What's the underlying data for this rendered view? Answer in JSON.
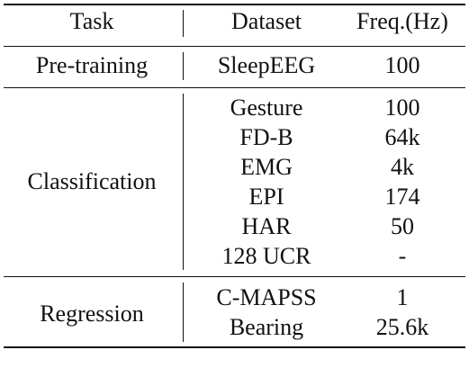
{
  "table": {
    "headers": {
      "task": "Task",
      "dataset": "Dataset",
      "freq": "Freq.(Hz)"
    },
    "groups": [
      {
        "task": "Pre-training",
        "rows": [
          {
            "dataset": "SleepEEG",
            "freq": "100"
          }
        ]
      },
      {
        "task": "Classification",
        "rows": [
          {
            "dataset": "Gesture",
            "freq": "100"
          },
          {
            "dataset": "FD-B",
            "freq": "64k"
          },
          {
            "dataset": "EMG",
            "freq": "4k"
          },
          {
            "dataset": "EPI",
            "freq": "174"
          },
          {
            "dataset": "HAR",
            "freq": "50"
          },
          {
            "dataset": "128 UCR",
            "freq": "-"
          }
        ]
      },
      {
        "task": "Regression",
        "rows": [
          {
            "dataset": "C-MAPSS",
            "freq": "1"
          },
          {
            "dataset": "Bearing",
            "freq": "25.6k"
          }
        ]
      }
    ]
  }
}
